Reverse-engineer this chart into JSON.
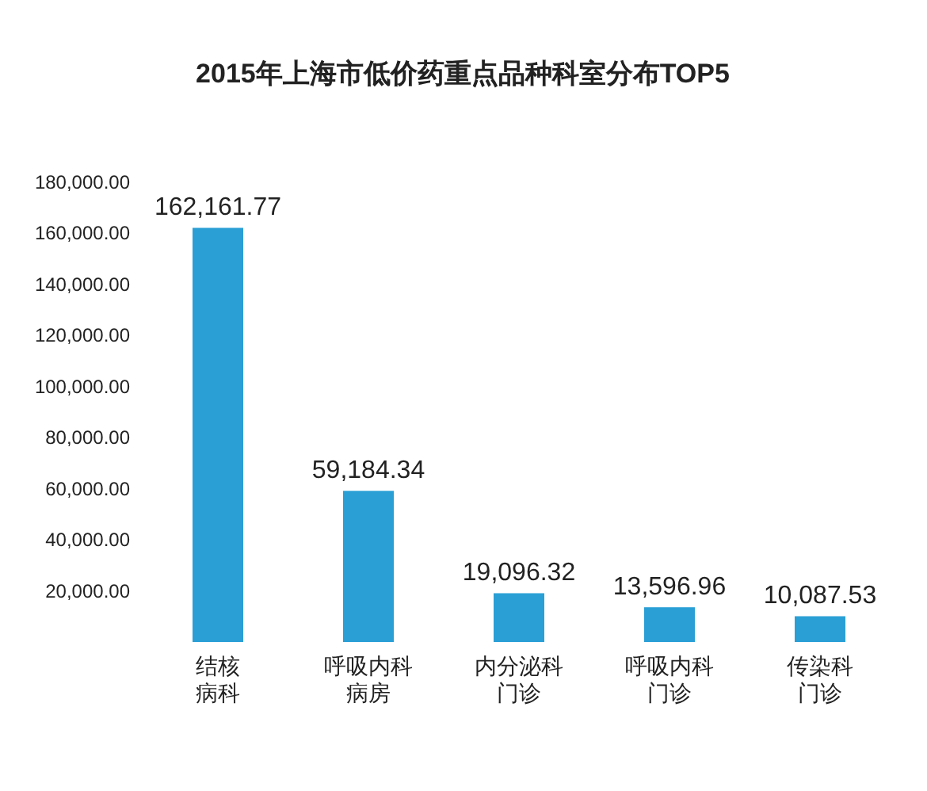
{
  "chart_data": {
    "type": "bar",
    "title": "2015年上海市低价药重点品种科室分布TOP5",
    "categories": [
      "结核病科",
      "呼吸内科病房",
      "内分泌科门诊",
      "呼吸内科门诊",
      "传染科门诊"
    ],
    "values": [
      162161.77,
      59184.34,
      19096.32,
      13596.96,
      10087.53
    ],
    "value_labels": [
      "162,161.77",
      "59,184.34",
      "19,096.32",
      "13,596.96",
      "10,087.53"
    ],
    "color": "#2a9fd6",
    "ylim": [
      0,
      180000
    ],
    "yticks": [
      {
        "value": 20000,
        "label": "20,000.00"
      },
      {
        "value": 40000,
        "label": "40,000.00"
      },
      {
        "value": 60000,
        "label": "60,000.00"
      },
      {
        "value": 80000,
        "label": "80,000.00"
      },
      {
        "value": 100000,
        "label": "100,000.00"
      },
      {
        "value": 120000,
        "label": "120,000.00"
      },
      {
        "value": 140000,
        "label": "140,000.00"
      },
      {
        "value": 160000,
        "label": "160,000.00"
      },
      {
        "value": 180000,
        "label": "180,000.00"
      }
    ],
    "grid": false
  }
}
